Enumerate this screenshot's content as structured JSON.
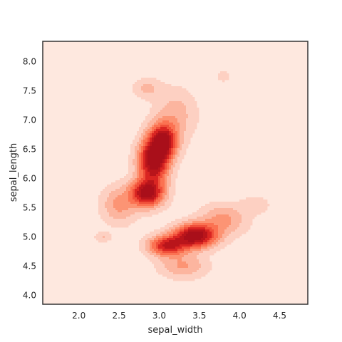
{
  "chart_data": {
    "type": "heatmap",
    "subtype": "kde-filled-contours",
    "title": "",
    "xlabel": "sepal_width",
    "ylabel": "sepal_length",
    "xlim": [
      1.55,
      4.85
    ],
    "ylim": [
      3.85,
      8.35
    ],
    "xticks": [
      2.0,
      2.5,
      3.0,
      3.5,
      4.0,
      4.5
    ],
    "yticks": [
      4.0,
      4.5,
      5.0,
      5.5,
      6.0,
      6.5,
      7.0,
      7.5,
      8.0
    ],
    "grid": false,
    "legend": "none",
    "colormap": "Reds",
    "colors": {
      "background": "#fee8df",
      "levels": [
        "#fdd0c2",
        "#fcb59f",
        "#fc9474",
        "#fb7252",
        "#f0503a",
        "#d92522",
        "#b9151b",
        "#a90f1a"
      ],
      "frame": "#333333"
    },
    "density_clusters": [
      {
        "x": 2.85,
        "y": 5.75,
        "sx": 0.14,
        "sy": 0.16,
        "weight": 0.95
      },
      {
        "x": 2.93,
        "y": 6.3,
        "sx": 0.13,
        "sy": 0.25,
        "weight": 1.0
      },
      {
        "x": 3.05,
        "y": 6.65,
        "sx": 0.12,
        "sy": 0.2,
        "weight": 0.85
      },
      {
        "x": 2.5,
        "y": 5.55,
        "sx": 0.15,
        "sy": 0.22,
        "weight": 0.3
      },
      {
        "x": 3.2,
        "y": 7.1,
        "sx": 0.18,
        "sy": 0.3,
        "weight": 0.22
      },
      {
        "x": 2.85,
        "y": 7.55,
        "sx": 0.12,
        "sy": 0.12,
        "weight": 0.18
      },
      {
        "x": 3.45,
        "y": 5.02,
        "sx": 0.18,
        "sy": 0.14,
        "weight": 1.0
      },
      {
        "x": 3.1,
        "y": 4.85,
        "sx": 0.16,
        "sy": 0.12,
        "weight": 0.75
      },
      {
        "x": 3.3,
        "y": 4.5,
        "sx": 0.2,
        "sy": 0.14,
        "weight": 0.28
      },
      {
        "x": 3.8,
        "y": 5.3,
        "sx": 0.2,
        "sy": 0.18,
        "weight": 0.3
      },
      {
        "x": 4.2,
        "y": 5.55,
        "sx": 0.12,
        "sy": 0.1,
        "weight": 0.14
      },
      {
        "x": 2.3,
        "y": 5.0,
        "sx": 0.07,
        "sy": 0.06,
        "weight": 0.16
      },
      {
        "x": 3.8,
        "y": 7.75,
        "sx": 0.06,
        "sy": 0.06,
        "weight": 0.14
      }
    ]
  }
}
